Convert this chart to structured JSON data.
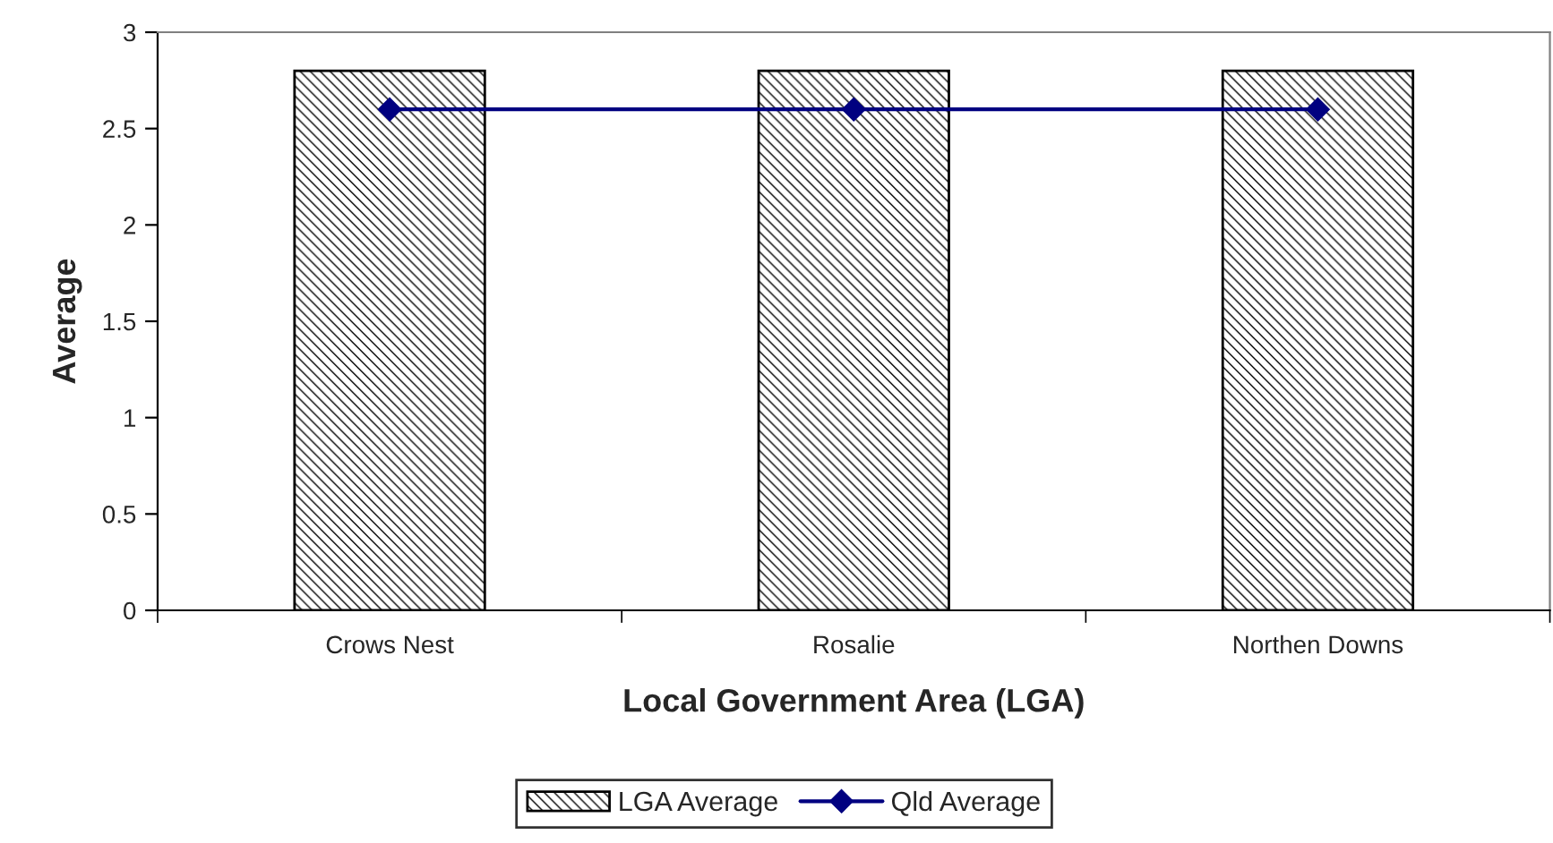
{
  "chart_data": {
    "type": "bar",
    "xlabel": "Local Government Area (LGA)",
    "ylabel": "Average",
    "categories": [
      "Crows Nest",
      "Rosalie",
      "Northen Downs"
    ],
    "series": [
      {
        "name": "LGA Average",
        "color": "#000000",
        "values": [
          2.8,
          2.8,
          2.8
        ]
      },
      {
        "name": "Qld Average",
        "type": "line",
        "color": "#000080",
        "marker": "diamond",
        "values": [
          2.6,
          2.6,
          2.6
        ]
      }
    ],
    "ylim": [
      0,
      3
    ],
    "yticks": [
      0,
      0.5,
      1,
      1.5,
      2,
      2.5,
      3
    ],
    "grid": false,
    "legend": "bottom"
  }
}
